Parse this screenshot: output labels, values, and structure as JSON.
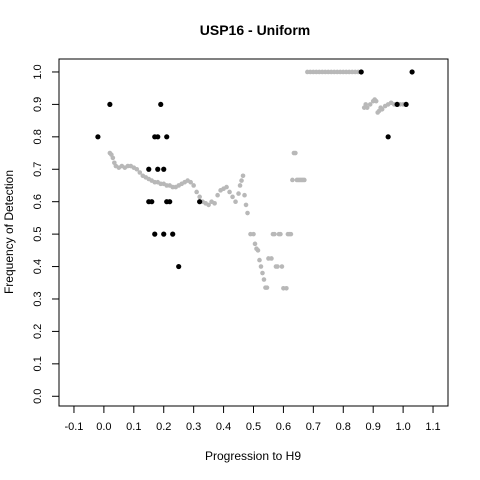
{
  "chart_data": {
    "type": "scatter",
    "title": "USP16 - Uniform",
    "xlabel": "Progression to H9",
    "ylabel": "Frequency of Detection",
    "xlim": [
      -0.15,
      1.15
    ],
    "ylim": [
      -0.03,
      1.04
    ],
    "x_ticks": [
      "-0.1",
      "0.0",
      "0.1",
      "0.2",
      "0.3",
      "0.4",
      "0.5",
      "0.6",
      "0.7",
      "0.8",
      "0.9",
      "1.0",
      "1.1"
    ],
    "y_ticks": [
      "0.0",
      "0.1",
      "0.2",
      "0.3",
      "0.4",
      "0.5",
      "0.6",
      "0.7",
      "0.8",
      "0.9",
      "1.0"
    ],
    "grid": false,
    "colors": {
      "smoothed": "#b8b8b8",
      "observed": "#000000"
    },
    "series": [
      {
        "role": "smoothed",
        "points": [
          [
            0.02,
            0.75
          ],
          [
            0.025,
            0.745
          ],
          [
            0.03,
            0.735
          ],
          [
            0.035,
            0.72
          ],
          [
            0.04,
            0.71
          ],
          [
            0.05,
            0.705
          ],
          [
            0.06,
            0.71
          ],
          [
            0.07,
            0.705
          ],
          [
            0.08,
            0.71
          ],
          [
            0.09,
            0.71
          ],
          [
            0.1,
            0.705
          ],
          [
            0.11,
            0.7
          ],
          [
            0.12,
            0.69
          ],
          [
            0.13,
            0.68
          ],
          [
            0.14,
            0.675
          ],
          [
            0.15,
            0.67
          ],
          [
            0.16,
            0.665
          ],
          [
            0.17,
            0.66
          ],
          [
            0.18,
            0.66
          ],
          [
            0.19,
            0.655
          ],
          [
            0.2,
            0.655
          ],
          [
            0.21,
            0.65
          ],
          [
            0.22,
            0.65
          ],
          [
            0.23,
            0.645
          ],
          [
            0.24,
            0.645
          ],
          [
            0.25,
            0.65
          ],
          [
            0.26,
            0.655
          ],
          [
            0.27,
            0.66
          ],
          [
            0.28,
            0.665
          ],
          [
            0.29,
            0.66
          ],
          [
            0.3,
            0.65
          ],
          [
            0.31,
            0.63
          ],
          [
            0.32,
            0.615
          ],
          [
            0.33,
            0.6
          ],
          [
            0.34,
            0.595
          ],
          [
            0.35,
            0.59
          ],
          [
            0.36,
            0.6
          ],
          [
            0.37,
            0.595
          ],
          [
            0.38,
            0.62
          ],
          [
            0.39,
            0.635
          ],
          [
            0.4,
            0.64
          ],
          [
            0.41,
            0.645
          ],
          [
            0.42,
            0.63
          ],
          [
            0.43,
            0.615
          ],
          [
            0.44,
            0.6
          ],
          [
            0.45,
            0.625
          ],
          [
            0.455,
            0.65
          ],
          [
            0.46,
            0.665
          ],
          [
            0.465,
            0.68
          ],
          [
            0.47,
            0.62
          ],
          [
            0.475,
            0.59
          ],
          [
            0.48,
            0.565
          ],
          [
            0.49,
            0.5
          ],
          [
            0.5,
            0.5
          ],
          [
            0.505,
            0.47
          ],
          [
            0.51,
            0.455
          ],
          [
            0.515,
            0.45
          ],
          [
            0.52,
            0.42
          ],
          [
            0.525,
            0.4
          ],
          [
            0.53,
            0.38
          ],
          [
            0.535,
            0.36
          ],
          [
            0.54,
            0.335
          ],
          [
            0.545,
            0.335
          ],
          [
            0.55,
            0.425
          ],
          [
            0.56,
            0.425
          ],
          [
            0.565,
            0.5
          ],
          [
            0.57,
            0.5
          ],
          [
            0.575,
            0.4
          ],
          [
            0.58,
            0.4
          ],
          [
            0.585,
            0.5
          ],
          [
            0.59,
            0.5
          ],
          [
            0.595,
            0.4
          ],
          [
            0.6,
            0.333
          ],
          [
            0.61,
            0.333
          ],
          [
            0.615,
            0.5
          ],
          [
            0.62,
            0.5
          ],
          [
            0.625,
            0.5
          ],
          [
            0.63,
            0.667
          ],
          [
            0.635,
            0.75
          ],
          [
            0.64,
            0.75
          ],
          [
            0.645,
            0.667
          ],
          [
            0.65,
            0.667
          ],
          [
            0.655,
            0.667
          ],
          [
            0.66,
            0.667
          ],
          [
            0.665,
            0.667
          ],
          [
            0.67,
            0.667
          ],
          [
            0.68,
            1.0
          ],
          [
            0.69,
            1.0
          ],
          [
            0.7,
            1.0
          ],
          [
            0.71,
            1.0
          ],
          [
            0.72,
            1.0
          ],
          [
            0.73,
            1.0
          ],
          [
            0.74,
            1.0
          ],
          [
            0.75,
            1.0
          ],
          [
            0.76,
            1.0
          ],
          [
            0.77,
            1.0
          ],
          [
            0.78,
            1.0
          ],
          [
            0.79,
            1.0
          ],
          [
            0.8,
            1.0
          ],
          [
            0.81,
            1.0
          ],
          [
            0.82,
            1.0
          ],
          [
            0.83,
            1.0
          ],
          [
            0.84,
            1.0
          ],
          [
            0.85,
            1.0
          ],
          [
            0.86,
            1.0
          ],
          [
            0.87,
            0.89
          ],
          [
            0.875,
            0.9
          ],
          [
            0.88,
            0.89
          ],
          [
            0.89,
            0.9
          ],
          [
            0.9,
            0.91
          ],
          [
            0.905,
            0.915
          ],
          [
            0.91,
            0.91
          ],
          [
            0.915,
            0.875
          ],
          [
            0.92,
            0.88
          ],
          [
            0.925,
            0.89
          ],
          [
            0.93,
            0.885
          ],
          [
            0.94,
            0.895
          ],
          [
            0.95,
            0.9
          ],
          [
            0.96,
            0.905
          ],
          [
            0.97,
            0.9
          ],
          [
            0.98,
            0.9
          ],
          [
            0.99,
            0.9
          ],
          [
            1.0,
            0.9
          ],
          [
            1.01,
            0.9
          ]
        ]
      },
      {
        "role": "observed",
        "points": [
          [
            -0.02,
            0.8
          ],
          [
            0.02,
            0.9
          ],
          [
            0.15,
            0.7
          ],
          [
            0.15,
            0.6
          ],
          [
            0.16,
            0.6
          ],
          [
            0.17,
            0.5
          ],
          [
            0.17,
            0.8
          ],
          [
            0.18,
            0.8
          ],
          [
            0.18,
            0.7
          ],
          [
            0.19,
            0.9
          ],
          [
            0.2,
            0.7
          ],
          [
            0.2,
            0.5
          ],
          [
            0.21,
            0.8
          ],
          [
            0.21,
            0.6
          ],
          [
            0.22,
            0.6
          ],
          [
            0.23,
            0.5
          ],
          [
            0.25,
            0.4
          ],
          [
            0.32,
            0.6
          ],
          [
            0.86,
            1.0
          ],
          [
            0.95,
            0.8
          ],
          [
            0.98,
            0.9
          ],
          [
            1.01,
            0.9
          ],
          [
            1.03,
            1.0
          ]
        ]
      }
    ]
  }
}
